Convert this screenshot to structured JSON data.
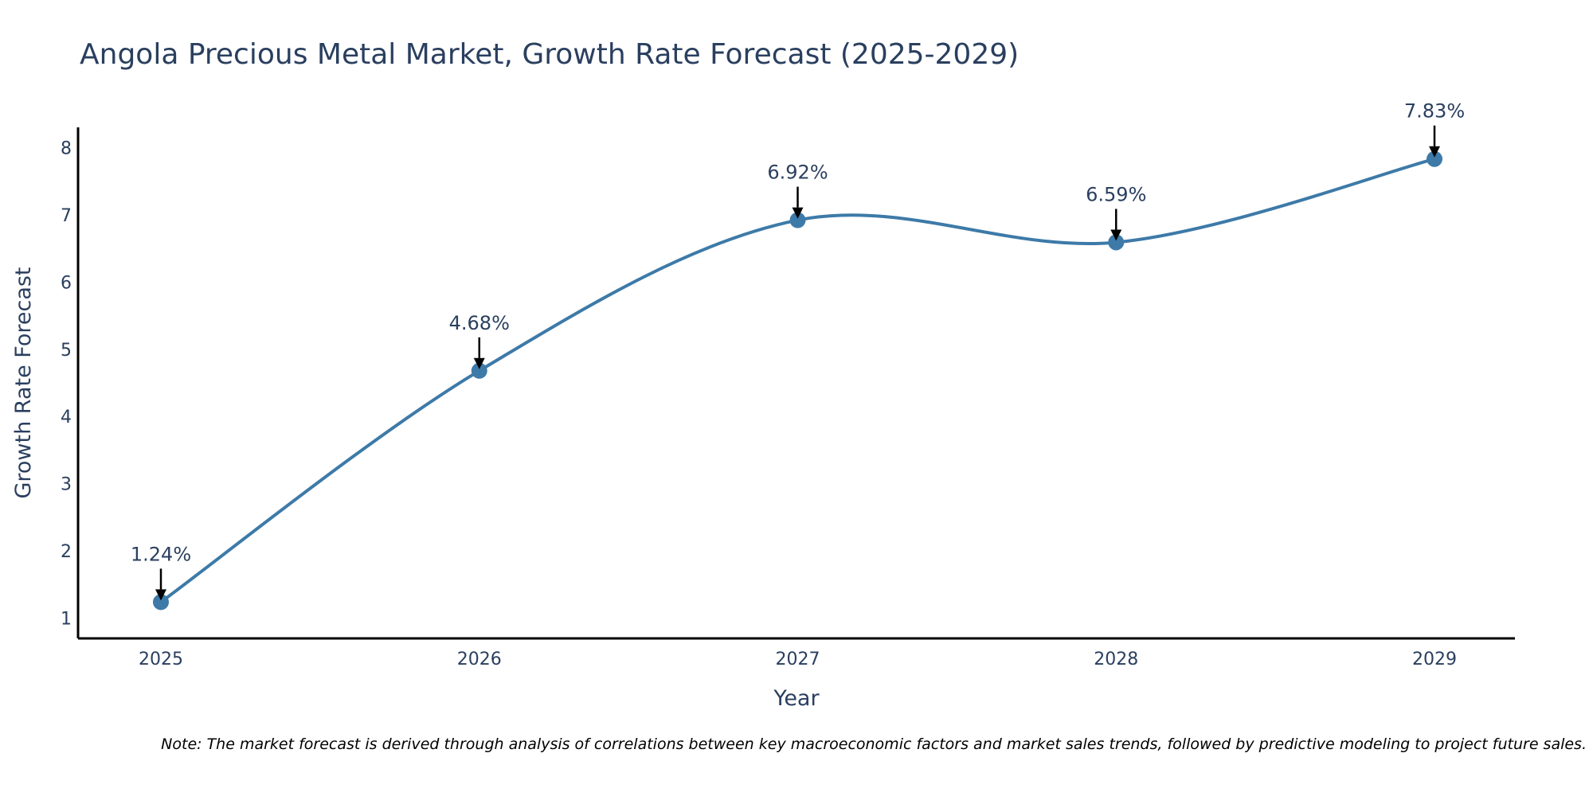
{
  "chart_data": {
    "type": "line",
    "title": "Angola Precious Metal Market, Growth Rate Forecast (2025-2029)",
    "xlabel": "Year",
    "ylabel": "Growth Rate Forecast",
    "categories": [
      "2025",
      "2026",
      "2027",
      "2028",
      "2029"
    ],
    "values": [
      1.24,
      4.68,
      6.92,
      6.59,
      7.83
    ],
    "data_labels": [
      "1.24%",
      "4.68%",
      "6.92%",
      "6.59%",
      "7.83%"
    ],
    "yticks": [
      "1",
      "2",
      "3",
      "4",
      "5",
      "6",
      "7",
      "8"
    ],
    "ylim": [
      0.7,
      8.3
    ],
    "grid": false,
    "line_shape": "spline",
    "colors": {
      "line": "#3d7aa8",
      "marker": "#3d7aa8",
      "axis": "#000000",
      "text": "#2a3f5f"
    },
    "note": "Note: The market forecast is derived through analysis of correlations between key macroeconomic factors and market sales trends, followed by predictive modeling to project future sales."
  }
}
